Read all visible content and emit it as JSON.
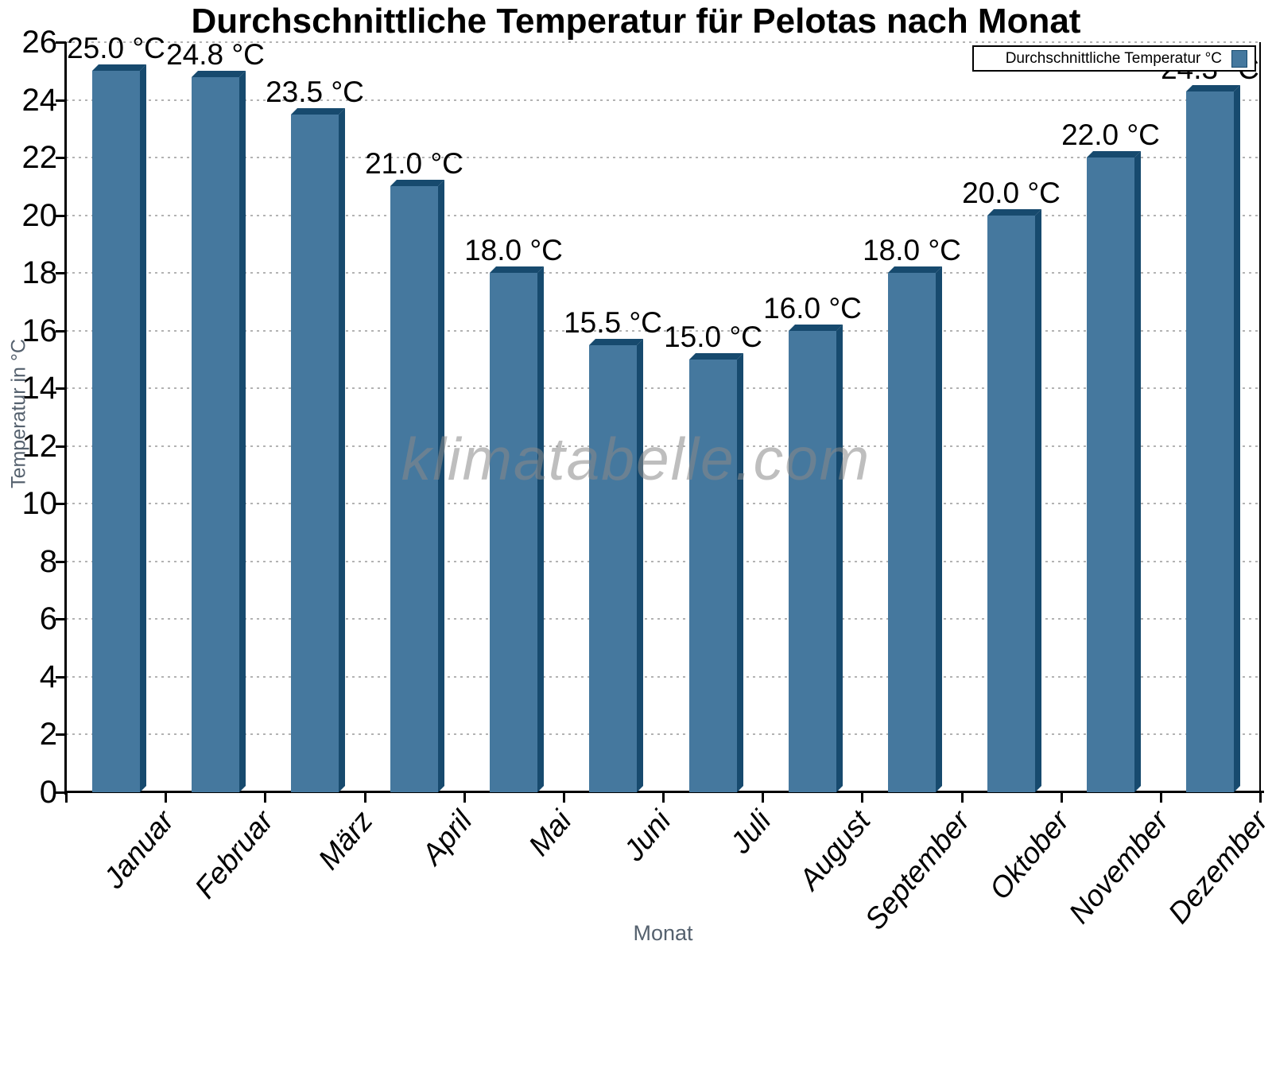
{
  "title": "Durchschnittliche Temperatur für Pelotas nach Monat",
  "watermark": "klimatabelle.com",
  "legend": {
    "label": "Durchschnittliche Temperatur °C"
  },
  "axes": {
    "x_title": "Monat",
    "y_title": "Temperatur in °C"
  },
  "colors": {
    "bar_fill": "#45789E",
    "bar_shade": "#174A6E",
    "grid_line": "#B3B3B3",
    "axis_line": "#000000",
    "text": "#000000",
    "axis_title_text": "#55616E",
    "watermark_text": "#8A8A8A",
    "legend_border": "#000000",
    "legend_background": "#FFFFFF"
  },
  "chart_data": {
    "type": "bar",
    "title": "Durchschnittliche Temperatur für Pelotas nach Monat",
    "xlabel": "Monat",
    "ylabel": "Temperatur in °C",
    "categories": [
      "Januar",
      "Februar",
      "März",
      "April",
      "Mai",
      "Juni",
      "Juli",
      "August",
      "September",
      "Oktober",
      "November",
      "Dezember"
    ],
    "values": [
      25.0,
      24.8,
      23.5,
      21.0,
      18.0,
      15.5,
      15.0,
      16.0,
      18.0,
      20.0,
      22.0,
      24.3
    ],
    "value_labels": [
      "25.0 °C",
      "24.8 °C",
      "23.5 °C",
      "21.0 °C",
      "18.0 °C",
      "15.5 °C",
      "15.0 °C",
      "16.0 °C",
      "18.0 °C",
      "20.0 °C",
      "22.0 °C",
      "24.3 °C"
    ],
    "series_name": "Durchschnittliche Temperatur °C",
    "ylim": [
      0,
      26
    ],
    "ytick_step": 2,
    "yticks": [
      0,
      2,
      4,
      6,
      8,
      10,
      12,
      14,
      16,
      18,
      20,
      22,
      24,
      26
    ],
    "grid": "horizontal dotted",
    "legend_position": "top-right",
    "bar_style": "3d",
    "x_labels_rotated": true
  }
}
